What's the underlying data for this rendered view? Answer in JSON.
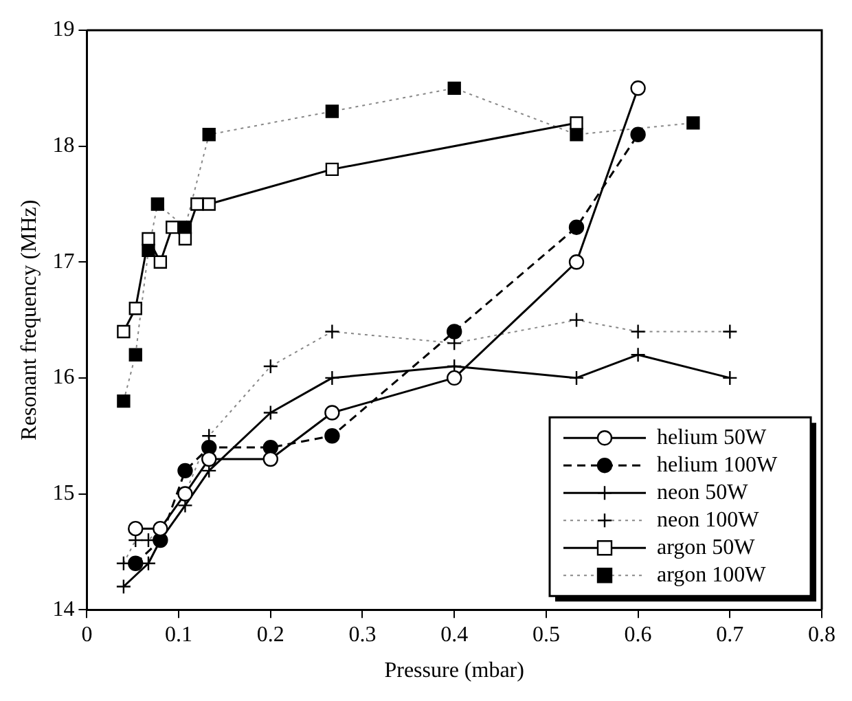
{
  "chart_data": {
    "type": "line",
    "xlabel": "Pressure (mbar)",
    "ylabel": "Resonant frequency (MHz)",
    "xlim": [
      0,
      0.8
    ],
    "xticks": [
      0,
      0.1,
      0.2,
      0.3,
      0.4,
      0.5,
      0.6,
      0.7,
      0.8
    ],
    "ylim": [
      14,
      19
    ],
    "yticks": [
      14,
      15,
      16,
      17,
      18,
      19
    ],
    "grid": false,
    "legend": "bottom right",
    "series": [
      {
        "name": "helium 50W",
        "color": "#000000",
        "marker": "circle",
        "line_style": "solid",
        "x": [
          0.053,
          0.08,
          0.107,
          0.133,
          0.2,
          0.267,
          0.4,
          0.533,
          0.6
        ],
        "values": [
          14.7,
          14.7,
          15.0,
          15.3,
          15.3,
          15.7,
          16.0,
          17.0,
          18.5
        ]
      },
      {
        "name": "helium 100W",
        "color": "#000000",
        "marker": "circle",
        "line_style": "dashed",
        "x": [
          0.053,
          0.08,
          0.107,
          0.133,
          0.2,
          0.267,
          0.4,
          0.533,
          0.6
        ],
        "values": [
          14.4,
          14.6,
          15.2,
          15.4,
          15.4,
          15.5,
          16.4,
          17.3,
          18.1
        ]
      },
      {
        "name": "neon 50W",
        "color": "#000000",
        "marker": "cross",
        "line_style": "solid",
        "x": [
          0.04,
          0.067,
          0.08,
          0.107,
          0.133,
          0.2,
          0.267,
          0.4,
          0.533,
          0.6,
          0.7
        ],
        "values": [
          14.2,
          14.4,
          14.6,
          14.9,
          15.2,
          15.7,
          16.0,
          16.1,
          16.0,
          16.2,
          16.0
        ]
      },
      {
        "name": "neon 100W",
        "color": "#888888",
        "marker": "cross",
        "line_style": "dotted",
        "x": [
          0.04,
          0.053,
          0.067,
          0.08,
          0.107,
          0.133,
          0.2,
          0.267,
          0.4,
          0.533,
          0.6,
          0.7
        ],
        "values": [
          14.4,
          14.6,
          14.6,
          14.7,
          15.0,
          15.5,
          16.1,
          16.4,
          16.3,
          16.5,
          16.4,
          16.4
        ]
      },
      {
        "name": "argon 50W",
        "color": "#000000",
        "marker": "square",
        "line_style": "solid",
        "x": [
          0.04,
          0.053,
          0.067,
          0.08,
          0.093,
          0.107,
          0.12,
          0.133,
          0.267,
          0.533
        ],
        "values": [
          16.4,
          16.6,
          17.2,
          17.0,
          17.3,
          17.2,
          17.5,
          17.5,
          17.8,
          18.2
        ]
      },
      {
        "name": "argon 100W",
        "color": "#888888",
        "marker": "square",
        "line_style": "dotted",
        "x": [
          0.04,
          0.053,
          0.067,
          0.077,
          0.107,
          0.133,
          0.267,
          0.4,
          0.533,
          0.66
        ],
        "values": [
          15.8,
          16.2,
          17.1,
          17.5,
          17.3,
          18.1,
          18.3,
          18.5,
          18.1,
          18.2
        ]
      }
    ]
  }
}
